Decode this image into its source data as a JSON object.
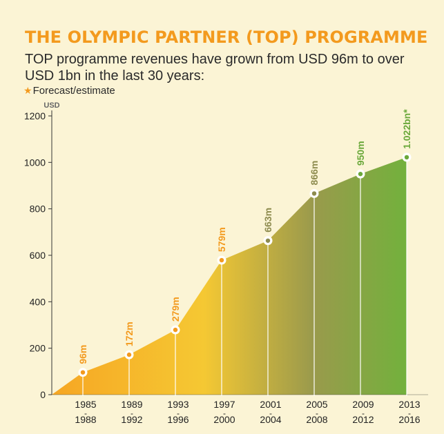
{
  "header": {
    "title": "THE OLYMPIC PARTNER (TOP) PROGRAMME",
    "subtitle": "TOP programme revenues have grown from USD 96m to over USD 1bn in the last 30 years:",
    "note_star": "★",
    "note_text": "Forecast/estimate"
  },
  "colors": {
    "title": "#f39a1e",
    "area_start": "#f6a623",
    "area_mid": "#f5c833",
    "area_olive": "#9a9a4c",
    "area_end": "#6fb33b",
    "label_orange": "#f39a1e",
    "label_olive": "#8d8b4e",
    "label_green": "#6aa83a"
  },
  "chart_data": {
    "type": "area",
    "ylabel": "USD",
    "ylim": [
      0,
      1200
    ],
    "yticks": [
      0,
      200,
      400,
      600,
      800,
      1000,
      1200
    ],
    "grid": false,
    "categories": [
      {
        "start": "1985",
        "end": "1988"
      },
      {
        "start": "1989",
        "end": "1992"
      },
      {
        "start": "1993",
        "end": "1996"
      },
      {
        "start": "1997",
        "end": "2000"
      },
      {
        "start": "2001",
        "end": "2004"
      },
      {
        "start": "2005",
        "end": "2008"
      },
      {
        "start": "2009",
        "end": "2012"
      },
      {
        "start": "2013",
        "end": "2016"
      }
    ],
    "values": [
      96,
      172,
      279,
      579,
      663,
      866,
      950,
      1022
    ],
    "labels": [
      "96m",
      "172m",
      "279m",
      "579m",
      "663m",
      "866m",
      "950m",
      "1.022bn*"
    ],
    "label_color_keys": [
      "label_orange",
      "label_orange",
      "label_orange",
      "label_orange",
      "label_olive",
      "label_olive",
      "label_green",
      "label_green"
    ],
    "forecast_marker": "*"
  }
}
